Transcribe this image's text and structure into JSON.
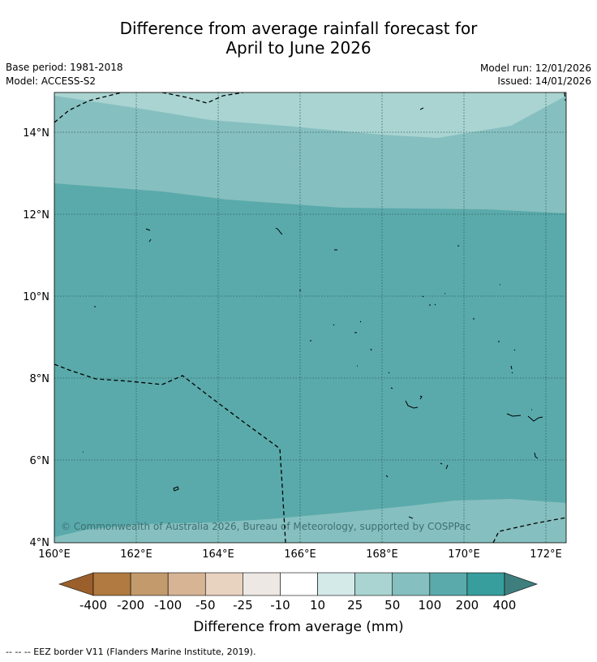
{
  "title_line1": "Difference from average rainfall forecast for",
  "title_line2": "April to June 2026",
  "base_period": "Base period: 1981-2018",
  "model": "Model: ACCESS-S2",
  "model_run": "Model run: 12/01/2026",
  "issued": "Issued: 14/01/2026",
  "copyright": "© Commonwealth of Australia 2026, Bureau of Meteorology, supported by COSPPac",
  "map": {
    "lon_range": [
      160,
      172.5
    ],
    "lat_range": [
      4,
      15
    ],
    "lon_ticks": [
      "160°E",
      "162°E",
      "164°E",
      "166°E",
      "168°E",
      "170°E",
      "172°E"
    ],
    "lat_ticks": [
      "4°N",
      "6°N",
      "8°N",
      "10°N",
      "12°N",
      "14°N"
    ]
  },
  "colorbar": {
    "title": "Difference from average (mm)",
    "labels": [
      "-400",
      "-200",
      "-100",
      "-50",
      "-25",
      "-10",
      "10",
      "25",
      "50",
      "100",
      "200",
      "400"
    ],
    "colors": [
      "#9a5f2a",
      "#b07a40",
      "#c29a6c",
      "#d6b494",
      "#e8d2c0",
      "#eee8e4",
      "#ffffff",
      "#d4eae8",
      "#a9d4d2",
      "#86bfbf",
      "#5aaaab",
      "#379e9d",
      "#3e7f7d"
    ]
  },
  "footnote": "--  --  -- EEZ border V11 (Flanders Marine Institute, 2019)."
}
